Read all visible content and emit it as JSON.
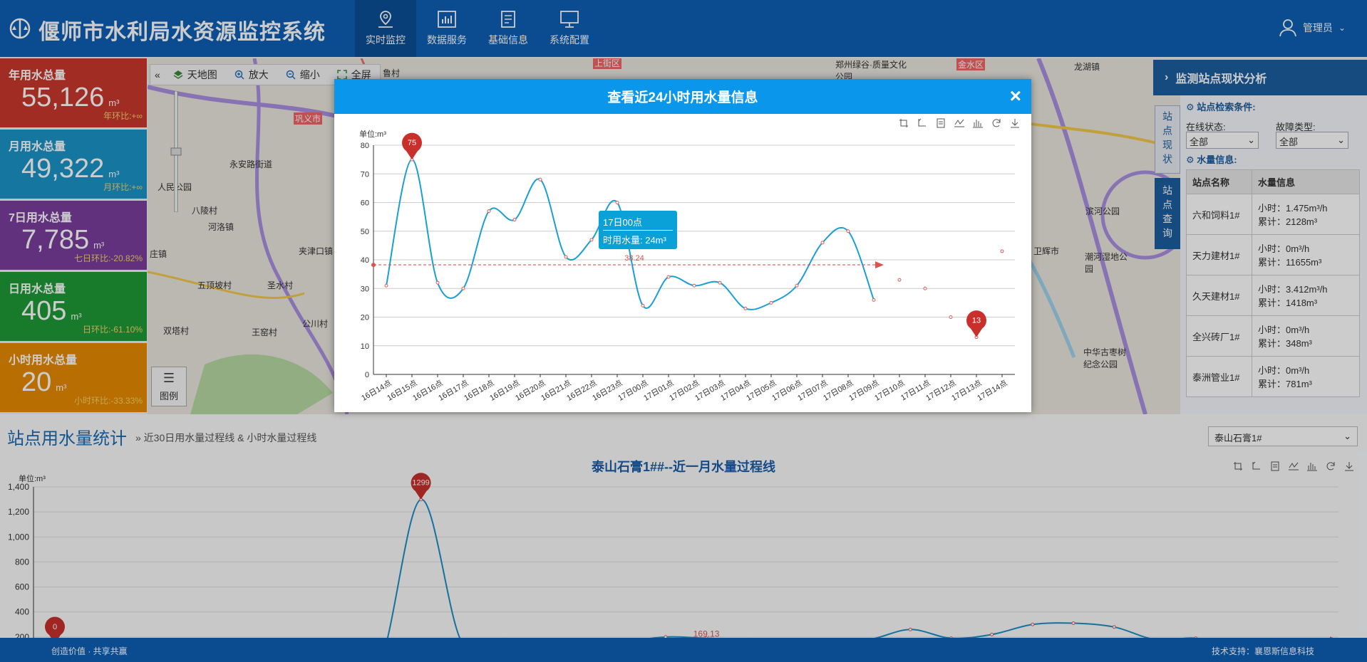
{
  "app": {
    "title": "偃师市水利局水资源监控系统"
  },
  "nav": [
    {
      "label": "实时监控",
      "icon": "map-pin-icon"
    },
    {
      "label": "数据服务",
      "icon": "bar-chart-icon"
    },
    {
      "label": "基础信息",
      "icon": "document-icon"
    },
    {
      "label": "系统配置",
      "icon": "monitor-icon"
    }
  ],
  "user": {
    "name": "管理员"
  },
  "stats": [
    {
      "label": "年用水总量",
      "value": "55,126",
      "unit": "m³",
      "change": "年环比:+∞",
      "color": "#c8382d"
    },
    {
      "label": "月用水总量",
      "value": "49,322",
      "unit": "m³",
      "change": "月环比:+∞",
      "color": "#1b95c9"
    },
    {
      "label": "7日用水总量",
      "value": "7,785",
      "unit": "m³",
      "change": "七日环比:-20.82%",
      "color": "#7a3e9d"
    },
    {
      "label": "日用水总量",
      "value": "405",
      "unit": "m³",
      "change": "日环比:-61.10%",
      "color": "#1f9a38"
    },
    {
      "label": "小时用水总量",
      "value": "20",
      "unit": "m³",
      "change": "小时环比:-33.33%",
      "color": "#e68a00"
    }
  ],
  "map": {
    "toolbar": [
      "天地图",
      "放大",
      "缩小",
      "全屏"
    ],
    "legend": "图例",
    "places": [
      "上街区",
      "金水区",
      "郑州绿谷·质量文化公园",
      "龙湖镇",
      "巩义市",
      "永安路街道",
      "人民公园",
      "八陵村",
      "河洛镇",
      "夹津口镇",
      "五顶坡村",
      "圣水村",
      "公川村",
      "双塔村",
      "王窑村",
      "滨河公园",
      "卫辉市",
      "潮河湿地公园",
      "中华古枣树纪念公园",
      "庄镇",
      "鲁村"
    ]
  },
  "right_panel": {
    "title": "监测站点现状分析",
    "tab1": "站点现状",
    "tab2": "站点查询",
    "search_section": "站点检索条件:",
    "online_label": "在线状态:",
    "online_value": "全部",
    "fault_label": "故障类型:",
    "fault_value": "全部",
    "water_section": "水量信息:",
    "table": {
      "headers": [
        "站点名称",
        "水量信息"
      ],
      "rows": [
        {
          "name": "六和饲料1#",
          "hour": "小时：1.475m³/h",
          "total": "累计：2128m³"
        },
        {
          "name": "天力建材1#",
          "hour": "小时：0m³/h",
          "total": "累计：11655m³"
        },
        {
          "name": "久天建材1#",
          "hour": "小时：3.412m³/h",
          "total": "累计：1418m³"
        },
        {
          "name": "全兴砖厂1#",
          "hour": "小时：0m³/h",
          "total": "累计：348m³"
        },
        {
          "name": "泰洲管业1#",
          "hour": "小时：0m³/h",
          "total": "累计：781m³"
        }
      ]
    }
  },
  "bottom": {
    "title": "站点用水量统计",
    "subtitle": "» 近30日用水量过程线 & 小时水量过程线",
    "select_value": "泰山石膏1#",
    "chart_title": "泰山石膏1##--近一月水量过程线",
    "unit": "单位:m³"
  },
  "footer": {
    "left": "创造价值 · 共享共赢",
    "right": "技术支持：襄恩斯信息科技"
  },
  "modal": {
    "title": "查看近24小时用水量信息",
    "close": "×",
    "tooltip_time": "17日00点",
    "tooltip_value": "时用水量: 24m³"
  },
  "chart_data": [
    {
      "type": "line",
      "title": "查看近24小时用水量信息",
      "ylabel": "单位:m³",
      "ylim": [
        0,
        80
      ],
      "yticks": [
        0,
        10,
        20,
        30,
        40,
        50,
        60,
        70,
        80
      ],
      "categories": [
        "16日14点",
        "16日15点",
        "16日16点",
        "16日17点",
        "16日18点",
        "16日19点",
        "16日20点",
        "16日21点",
        "16日22点",
        "16日23点",
        "17日00点",
        "17日01点",
        "17日02点",
        "17日03点",
        "17日04点",
        "17日05点",
        "17日06点",
        "17日07点",
        "17日08点",
        "17日09点",
        "17日10点",
        "17日11点",
        "17日12点",
        "17日13点",
        "17日14点"
      ],
      "series": [
        {
          "values": [
            31,
            75,
            32,
            30,
            57,
            54,
            68,
            41,
            47,
            60,
            24,
            34,
            31,
            32,
            23,
            25,
            31,
            46,
            50,
            26,
            33,
            30,
            20,
            13,
            43
          ]
        }
      ],
      "average": 38.24,
      "max_marker": {
        "label": "75",
        "index": 1
      },
      "min_marker": {
        "label": "13",
        "index": 23
      },
      "color": "#1a9fd5"
    },
    {
      "type": "line",
      "title": "泰山石膏1##--近一月水量过程线",
      "ylabel": "单位:m³",
      "ylim": [
        0,
        1400
      ],
      "yticks": [
        200,
        400,
        600,
        800,
        1000,
        1200,
        1400
      ],
      "series": [
        {
          "values": [
            0,
            0,
            0,
            0,
            0,
            0,
            0,
            0,
            0,
            1299,
            160,
            180,
            120,
            120,
            160,
            200,
            190,
            180,
            170,
            170,
            180,
            260,
            190,
            220,
            300,
            310,
            280,
            180,
            190,
            120,
            140,
            120
          ]
        }
      ],
      "average": 169.13,
      "max_marker": {
        "label": "1299",
        "index": 9
      },
      "min_marker": {
        "label": "0",
        "index": 0
      },
      "color": "#1a8fc5"
    }
  ]
}
